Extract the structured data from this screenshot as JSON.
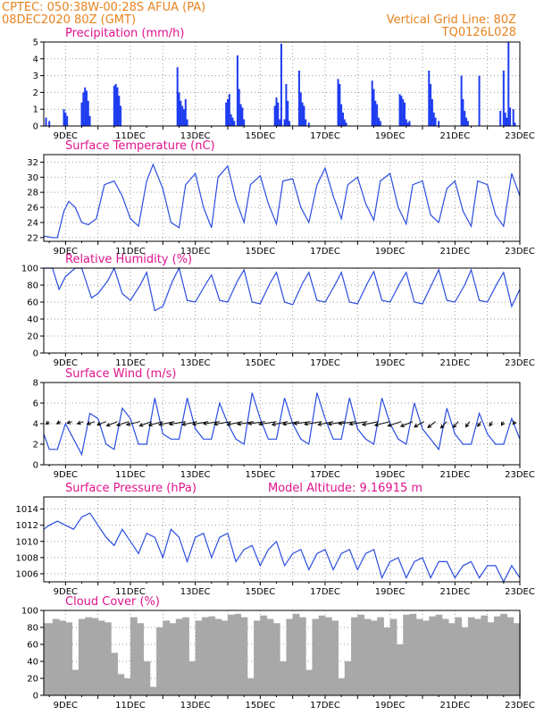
{
  "header": {
    "line1_left": "CPTEC:   050:38W-00:28S   AFUA (PA)",
    "line2_left": "08DEC2020 80Z (GMT)",
    "line1_right": "Vertical Grid Line: 80Z",
    "line2_right": "TQ0126L028"
  },
  "colors": {
    "header": "#e8821e",
    "title": "#e0138c",
    "bars": "#1e3cf0",
    "line": "#2a4de0",
    "cloud": "#a8a8a8",
    "grid": "#9a9a9a"
  },
  "x_tick_labels": [
    "9DEC",
    "11DEC",
    "13DEC",
    "15DEC",
    "17DEC",
    "19DEC",
    "21DEC",
    "23DEC"
  ],
  "chart_data": [
    {
      "id": "precip",
      "type": "bar",
      "title": "Precipitation (mm/h)",
      "ylim": [
        0,
        5
      ],
      "yticks": [
        0,
        1,
        2,
        3,
        4,
        5
      ],
      "x_day_range": [
        8.33,
        23.0
      ],
      "x_vertical_grid_days": [
        9,
        10,
        11,
        12,
        13,
        14,
        15,
        16,
        17,
        18,
        19,
        20,
        21,
        22,
        23
      ],
      "series": [
        {
          "x": [
            8.4,
            8.5,
            8.95,
            9.0,
            9.05,
            9.5,
            9.55,
            9.6,
            9.65,
            9.7,
            9.75,
            10.5,
            10.55,
            10.6,
            10.65,
            10.7,
            12.45,
            12.5,
            12.55,
            12.6,
            12.65,
            12.7,
            12.75,
            13.95,
            14.0,
            14.05,
            14.1,
            14.15,
            14.2,
            14.3,
            14.35,
            14.4,
            14.45,
            14.5,
            15.45,
            15.5,
            15.55,
            15.6,
            15.65,
            15.75,
            15.8,
            15.85,
            15.9,
            16.2,
            16.25,
            16.3,
            16.35,
            16.4,
            16.5,
            17.4,
            17.45,
            17.5,
            17.55,
            17.6,
            17.65,
            18.45,
            18.5,
            18.55,
            18.6,
            18.65,
            18.7,
            19.3,
            19.35,
            19.4,
            19.45,
            19.5,
            19.55,
            19.6,
            20.2,
            20.25,
            20.3,
            20.35,
            20.4,
            20.5,
            21.2,
            21.25,
            21.3,
            21.35,
            21.4,
            21.75,
            22.4,
            22.5,
            22.55,
            22.6,
            22.65,
            22.7,
            22.8,
            22.85
          ],
          "values": [
            0.5,
            0.3,
            1.0,
            0.8,
            0.6,
            1.4,
            2.0,
            2.3,
            2.1,
            1.5,
            0.6,
            2.4,
            2.5,
            2.3,
            1.8,
            1.2,
            3.5,
            2.0,
            1.5,
            1.2,
            1.0,
            1.6,
            0.4,
            1.4,
            1.6,
            1.9,
            0.7,
            0.5,
            0.3,
            4.2,
            2.2,
            1.3,
            1.1,
            0.4,
            1.2,
            1.7,
            1.4,
            0.4,
            4.9,
            0.4,
            2.5,
            1.5,
            0.3,
            3.3,
            2.0,
            1.4,
            1.2,
            0.4,
            0.2,
            2.8,
            2.5,
            1.3,
            0.8,
            0.4,
            0.2,
            2.7,
            2.2,
            1.5,
            1.3,
            0.5,
            0.3,
            1.9,
            1.8,
            1.6,
            1.4,
            0.4,
            0.2,
            0.3,
            3.3,
            2.5,
            1.6,
            0.8,
            0.5,
            0.3,
            3.0,
            1.6,
            0.9,
            0.5,
            0.3,
            3.0,
            0.9,
            3.3,
            0.8,
            0.5,
            5.0,
            1.1,
            1.0,
            0.2
          ]
        }
      ]
    },
    {
      "id": "temp",
      "type": "line",
      "title": "Surface Temperature (nC)",
      "ylim": [
        21.5,
        33
      ],
      "yticks": [
        22,
        24,
        26,
        28,
        30,
        32
      ],
      "series": [
        {
          "x": [
            8.33,
            8.6,
            8.75,
            8.95,
            9.1,
            9.3,
            9.5,
            9.7,
            9.95,
            10.2,
            10.5,
            10.75,
            11.0,
            11.25,
            11.5,
            11.7,
            12.0,
            12.25,
            12.5,
            12.7,
            13.0,
            13.25,
            13.5,
            13.7,
            14.0,
            14.25,
            14.5,
            14.7,
            15.0,
            15.25,
            15.5,
            15.7,
            16.0,
            16.25,
            16.5,
            16.75,
            17.0,
            17.25,
            17.5,
            17.7,
            18.0,
            18.25,
            18.5,
            18.7,
            19.0,
            19.25,
            19.5,
            19.7,
            20.0,
            20.25,
            20.5,
            20.75,
            21.0,
            21.25,
            21.5,
            21.7,
            22.0,
            22.25,
            22.5,
            22.75,
            23.0
          ],
          "values": [
            22.2,
            22.0,
            22.0,
            25.5,
            26.8,
            26.0,
            24.0,
            23.7,
            24.5,
            29.0,
            29.5,
            27.5,
            24.5,
            23.5,
            29.5,
            31.7,
            28.5,
            24.0,
            23.3,
            29.0,
            30.5,
            26.0,
            23.3,
            30.0,
            31.5,
            27.0,
            24.0,
            29.0,
            30.2,
            26.5,
            23.8,
            29.5,
            29.8,
            26.0,
            24.0,
            29.0,
            31.2,
            27.5,
            24.5,
            29.0,
            30.0,
            26.5,
            24.3,
            29.5,
            30.5,
            26.0,
            23.8,
            29.0,
            29.5,
            25.0,
            24.0,
            28.5,
            29.5,
            25.5,
            23.5,
            29.5,
            29.0,
            25.0,
            23.5,
            30.5,
            27.5
          ]
        }
      ]
    },
    {
      "id": "rh",
      "type": "line",
      "title": "Relative Humidity (%)",
      "ylim": [
        0,
        100
      ],
      "yticks": [
        0,
        20,
        40,
        60,
        80,
        100
      ],
      "series": [
        {
          "x": [
            8.33,
            8.6,
            8.8,
            9.0,
            9.3,
            9.5,
            9.8,
            10.0,
            10.3,
            10.5,
            10.75,
            11.0,
            11.3,
            11.5,
            11.75,
            12.0,
            12.3,
            12.5,
            12.75,
            13.0,
            13.3,
            13.5,
            13.75,
            14.0,
            14.3,
            14.5,
            14.75,
            15.0,
            15.3,
            15.5,
            15.75,
            16.0,
            16.3,
            16.5,
            16.75,
            17.0,
            17.3,
            17.5,
            17.75,
            18.0,
            18.3,
            18.5,
            18.75,
            19.0,
            19.3,
            19.5,
            19.75,
            20.0,
            20.3,
            20.5,
            20.75,
            21.0,
            21.3,
            21.5,
            21.75,
            22.0,
            22.3,
            22.5,
            22.75,
            23.0
          ],
          "values": [
            100,
            100,
            75,
            90,
            100,
            100,
            65,
            70,
            85,
            100,
            70,
            62,
            80,
            95,
            50,
            55,
            85,
            100,
            62,
            60,
            80,
            92,
            62,
            60,
            85,
            98,
            60,
            58,
            82,
            95,
            60,
            57,
            82,
            95,
            62,
            60,
            80,
            95,
            60,
            58,
            82,
            96,
            62,
            60,
            82,
            95,
            60,
            58,
            82,
            98,
            62,
            60,
            80,
            98,
            62,
            60,
            82,
            95,
            55,
            75
          ]
        }
      ]
    },
    {
      "id": "wind",
      "type": "line",
      "title": "Surface Wind (m/s)",
      "ylim": [
        0,
        8
      ],
      "yticks": [
        0,
        2,
        4,
        6,
        8
      ],
      "series": [
        {
          "x": [
            8.33,
            8.5,
            8.75,
            9.0,
            9.25,
            9.5,
            9.75,
            10.0,
            10.25,
            10.5,
            10.75,
            11.0,
            11.25,
            11.5,
            11.75,
            12.0,
            12.25,
            12.5,
            12.75,
            13.0,
            13.25,
            13.5,
            13.75,
            14.0,
            14.25,
            14.5,
            14.75,
            15.0,
            15.25,
            15.5,
            15.75,
            16.0,
            16.25,
            16.5,
            16.75,
            17.0,
            17.25,
            17.5,
            17.75,
            18.0,
            18.25,
            18.5,
            18.75,
            19.0,
            19.25,
            19.5,
            19.75,
            20.0,
            20.25,
            20.5,
            20.75,
            21.0,
            21.25,
            21.5,
            21.75,
            22.0,
            22.25,
            22.5,
            22.75,
            23.0
          ],
          "values": [
            3.0,
            1.5,
            1.5,
            4.0,
            2.5,
            1.0,
            5.0,
            4.5,
            2.0,
            1.5,
            5.5,
            4.5,
            2.0,
            2.0,
            6.5,
            3.0,
            2.5,
            2.5,
            6.5,
            3.5,
            2.5,
            2.5,
            6.0,
            4.0,
            2.5,
            2.0,
            7.0,
            4.5,
            2.5,
            2.5,
            6.5,
            4.0,
            2.5,
            2.0,
            7.0,
            4.5,
            2.5,
            2.5,
            6.5,
            3.5,
            2.5,
            2.0,
            6.5,
            4.0,
            2.5,
            2.0,
            6.0,
            3.5,
            2.5,
            1.5,
            5.5,
            3.0,
            2.0,
            2.0,
            5.0,
            3.0,
            2.0,
            2.0,
            4.5,
            2.5
          ]
        }
      ],
      "wind_vectors": {
        "x": [
          8.5,
          8.85,
          9.2,
          9.55,
          9.9,
          10.25,
          10.6,
          10.95,
          11.3,
          11.65,
          12.0,
          12.35,
          12.7,
          13.05,
          13.4,
          13.75,
          14.1,
          14.45,
          14.8,
          15.15,
          15.5,
          15.85,
          16.2,
          16.55,
          16.9,
          17.25,
          17.6,
          17.95,
          18.3,
          18.65,
          19.0,
          19.35,
          19.7,
          20.05,
          20.4,
          20.75,
          21.1,
          21.45,
          21.8,
          22.15,
          22.5,
          22.85
        ],
        "u": [
          -0.6,
          -0.7,
          -0.9,
          -1.1,
          -1.4,
          -1.6,
          -2.0,
          -2.2,
          -2.5,
          -2.2,
          -2.6,
          -2.8,
          -3.0,
          -2.7,
          -2.9,
          -3.0,
          -3.1,
          -2.8,
          -3.0,
          -3.1,
          -3.2,
          -2.9,
          -3.0,
          -3.1,
          -3.2,
          -2.8,
          -3.0,
          -3.2,
          -3.3,
          -3.0,
          -2.8,
          -2.5,
          -2.2,
          -1.8,
          -1.4,
          -1.1,
          -0.9,
          -0.7,
          -0.6,
          -0.5,
          -0.4,
          -0.3
        ],
        "v": [
          -0.5,
          -0.4,
          -0.3,
          -0.4,
          -0.5,
          -0.6,
          -0.8,
          -0.7,
          -0.6,
          -0.8,
          -0.7,
          -0.6,
          -0.5,
          -0.6,
          -0.5,
          -0.4,
          -0.5,
          -0.6,
          -0.5,
          -0.4,
          -0.5,
          -0.6,
          -0.5,
          -0.4,
          -0.5,
          -0.6,
          -0.5,
          -0.4,
          -0.5,
          -0.6,
          -0.7,
          -0.8,
          -0.9,
          -1.0,
          -1.1,
          -1.2,
          -1.1,
          -1.0,
          -0.9,
          -0.8,
          -0.7,
          -0.5
        ]
      }
    },
    {
      "id": "pres",
      "type": "line",
      "title": "Surface Pressure (hPa)",
      "annotation": "Model Altitude: 9.16915 m",
      "ylim": [
        1005,
        1015.5
      ],
      "yticks": [
        1006,
        1008,
        1010,
        1012,
        1014
      ],
      "series": [
        {
          "x": [
            8.33,
            8.5,
            8.75,
            9.0,
            9.25,
            9.5,
            9.75,
            10.0,
            10.25,
            10.5,
            10.75,
            11.0,
            11.25,
            11.5,
            11.75,
            12.0,
            12.25,
            12.5,
            12.75,
            13.0,
            13.25,
            13.5,
            13.75,
            14.0,
            14.25,
            14.5,
            14.75,
            15.0,
            15.25,
            15.5,
            15.75,
            16.0,
            16.25,
            16.5,
            16.75,
            17.0,
            17.25,
            17.5,
            17.75,
            18.0,
            18.25,
            18.5,
            18.75,
            19.0,
            19.25,
            19.5,
            19.75,
            20.0,
            20.25,
            20.5,
            20.75,
            21.0,
            21.25,
            21.5,
            21.75,
            22.0,
            22.25,
            22.5,
            22.75,
            23.0
          ],
          "values": [
            1011.5,
            1012.0,
            1012.5,
            1012.0,
            1011.5,
            1013.0,
            1013.5,
            1012.0,
            1010.5,
            1009.5,
            1011.5,
            1010.0,
            1008.5,
            1011.0,
            1010.5,
            1008.0,
            1011.5,
            1010.5,
            1007.5,
            1010.5,
            1011.0,
            1008.0,
            1010.5,
            1011.0,
            1007.5,
            1009.0,
            1009.5,
            1007.0,
            1009.0,
            1010.0,
            1007.0,
            1008.5,
            1009.0,
            1006.5,
            1008.5,
            1009.0,
            1006.5,
            1008.5,
            1009.0,
            1006.5,
            1008.5,
            1009.0,
            1005.5,
            1007.5,
            1008.0,
            1005.5,
            1007.5,
            1008.0,
            1005.5,
            1007.5,
            1007.5,
            1005.5,
            1007.0,
            1007.5,
            1005.5,
            1007.0,
            1007.0,
            1005.0,
            1007.0,
            1005.5
          ]
        }
      ]
    },
    {
      "id": "cloud",
      "type": "area",
      "title": "Cloud Cover (%)",
      "ylim": [
        0,
        100
      ],
      "yticks": [
        0,
        20,
        40,
        60,
        80,
        100
      ],
      "series": [
        {
          "x": [
            8.33,
            8.6,
            8.8,
            9.0,
            9.2,
            9.4,
            9.6,
            9.8,
            10.0,
            10.2,
            10.4,
            10.6,
            10.8,
            11.0,
            11.2,
            11.4,
            11.6,
            11.8,
            12.0,
            12.2,
            12.4,
            12.6,
            12.8,
            13.0,
            13.2,
            13.4,
            13.6,
            13.8,
            14.0,
            14.2,
            14.4,
            14.6,
            14.8,
            15.0,
            15.2,
            15.4,
            15.6,
            15.8,
            16.0,
            16.2,
            16.4,
            16.6,
            16.8,
            17.0,
            17.2,
            17.4,
            17.6,
            17.8,
            18.0,
            18.2,
            18.4,
            18.6,
            18.8,
            19.0,
            19.2,
            19.4,
            19.6,
            19.8,
            20.0,
            20.2,
            20.4,
            20.6,
            20.8,
            21.0,
            21.2,
            21.4,
            21.6,
            21.8,
            22.0,
            22.2,
            22.4,
            22.6,
            22.8,
            23.0
          ],
          "values": [
            85,
            90,
            88,
            86,
            30,
            90,
            92,
            91,
            88,
            86,
            50,
            25,
            20,
            92,
            85,
            40,
            10,
            80,
            88,
            85,
            90,
            92,
            40,
            88,
            92,
            93,
            90,
            88,
            95,
            96,
            92,
            20,
            88,
            94,
            90,
            85,
            40,
            90,
            96,
            92,
            30,
            90,
            94,
            92,
            88,
            20,
            40,
            92,
            95,
            90,
            88,
            92,
            80,
            90,
            60,
            95,
            96,
            90,
            88,
            93,
            95,
            90,
            85,
            92,
            80,
            92,
            90,
            94,
            86,
            93,
            96,
            92,
            85,
            95
          ]
        }
      ]
    }
  ]
}
